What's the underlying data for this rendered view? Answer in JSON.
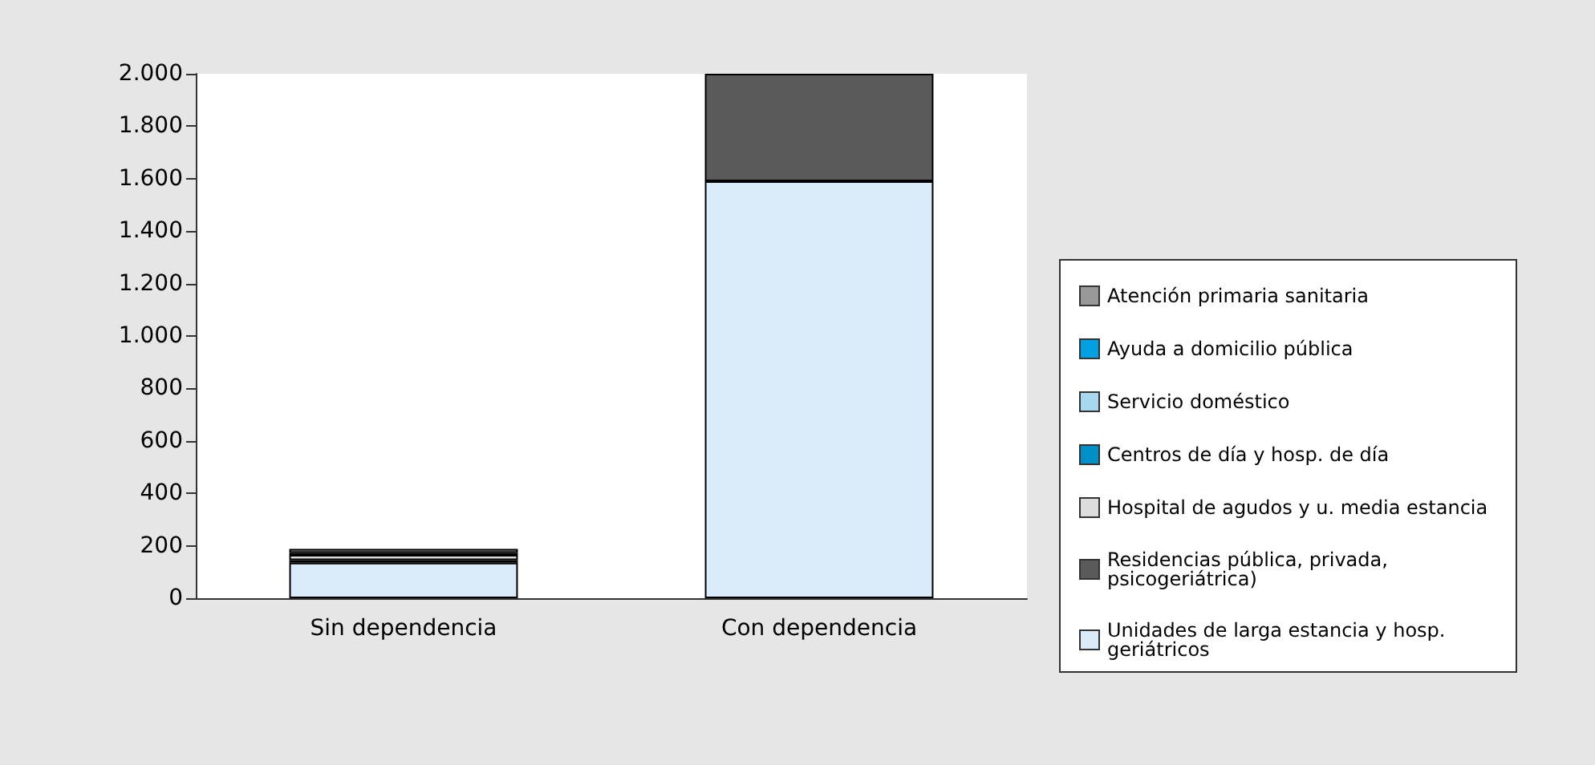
{
  "chart_data": {
    "type": "bar",
    "stacked": true,
    "categories": [
      "Sin dependencia",
      "Con dependencia"
    ],
    "series": [
      {
        "name": "Unidades de larga estancia y hosp. geriátricos",
        "color": "#daecfa",
        "values": [
          135,
          1590
        ]
      },
      {
        "name": "Residencias pública, privada, psicogeriátrica)",
        "color": "#5a5a5a",
        "values": [
          10,
          410
        ]
      },
      {
        "name": "Hospital de agudos y u. media estancia",
        "color": "#dddddd",
        "values": [
          20,
          null
        ]
      },
      {
        "name": "Centros de día y hosp. de día",
        "color": "#0090c8",
        "values": [
          8,
          null
        ]
      },
      {
        "name": "Servicio doméstico",
        "color": "#a8d8f0",
        "values": [
          null,
          null
        ]
      },
      {
        "name": "Ayuda a domicilio pública",
        "color": "#00a0e3",
        "values": [
          null,
          null
        ]
      },
      {
        "name": "Atención primaria sanitaria",
        "color": "#999999",
        "values": [
          15,
          null
        ]
      }
    ],
    "ylim": [
      0,
      2000
    ],
    "yticks": [
      0,
      200,
      400,
      600,
      800,
      {
        "value": 1000,
        "label": "1.000"
      },
      {
        "value": 1200,
        "label": "1.200"
      },
      {
        "value": 1400,
        "label": "1.400"
      },
      {
        "value": 1600,
        "label": "1.600"
      },
      {
        "value": 1800,
        "label": "1.800"
      },
      {
        "value": 2000,
        "label": "2.000"
      }
    ],
    "grid": false,
    "legend": "right"
  }
}
